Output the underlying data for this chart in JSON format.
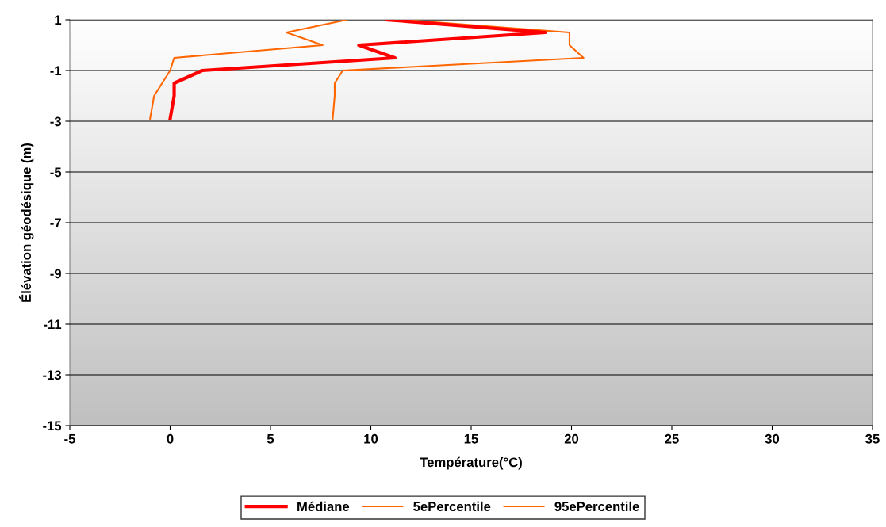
{
  "chart_data": {
    "type": "line",
    "xlabel": "Température(°C)",
    "ylabel": "Élévation géodésique (m)",
    "xlim": [
      -5,
      35
    ],
    "xticks": [
      -5,
      0,
      5,
      10,
      15,
      20,
      25,
      30,
      35
    ],
    "ylim": [
      -15,
      1
    ],
    "yticks": [
      -15,
      -13,
      -11,
      -9,
      -7,
      -5,
      -3,
      -1,
      1
    ],
    "grid": "y",
    "legend": "bottom",
    "marker": "none",
    "line_style": "solid",
    "series": [
      {
        "name": "Médiane",
        "color": "#ff0000",
        "x": [
          10.8,
          18.7,
          9.4,
          11.2,
          1.6,
          0.2,
          0.2,
          0.0
        ],
        "values": [
          1,
          0.5,
          0,
          -0.5,
          -1,
          -1.5,
          -2,
          -2.9
        ]
      },
      {
        "name": "5ePercentile",
        "color": "#ff6600",
        "x": [
          8.8,
          5.8,
          7.6,
          0.2,
          0.0,
          -0.4,
          -0.8,
          -1.0
        ],
        "values": [
          1,
          0.5,
          0,
          -0.5,
          -1,
          -1.5,
          -2,
          -2.9
        ]
      },
      {
        "name": "95ePercentile",
        "color": "#ff6600",
        "x": [
          11.6,
          19.9,
          19.9,
          20.6,
          8.6,
          8.2,
          8.2,
          8.1
        ],
        "values": [
          1,
          0.5,
          0,
          -0.5,
          -1,
          -1.5,
          -2,
          -2.9
        ]
      }
    ]
  }
}
